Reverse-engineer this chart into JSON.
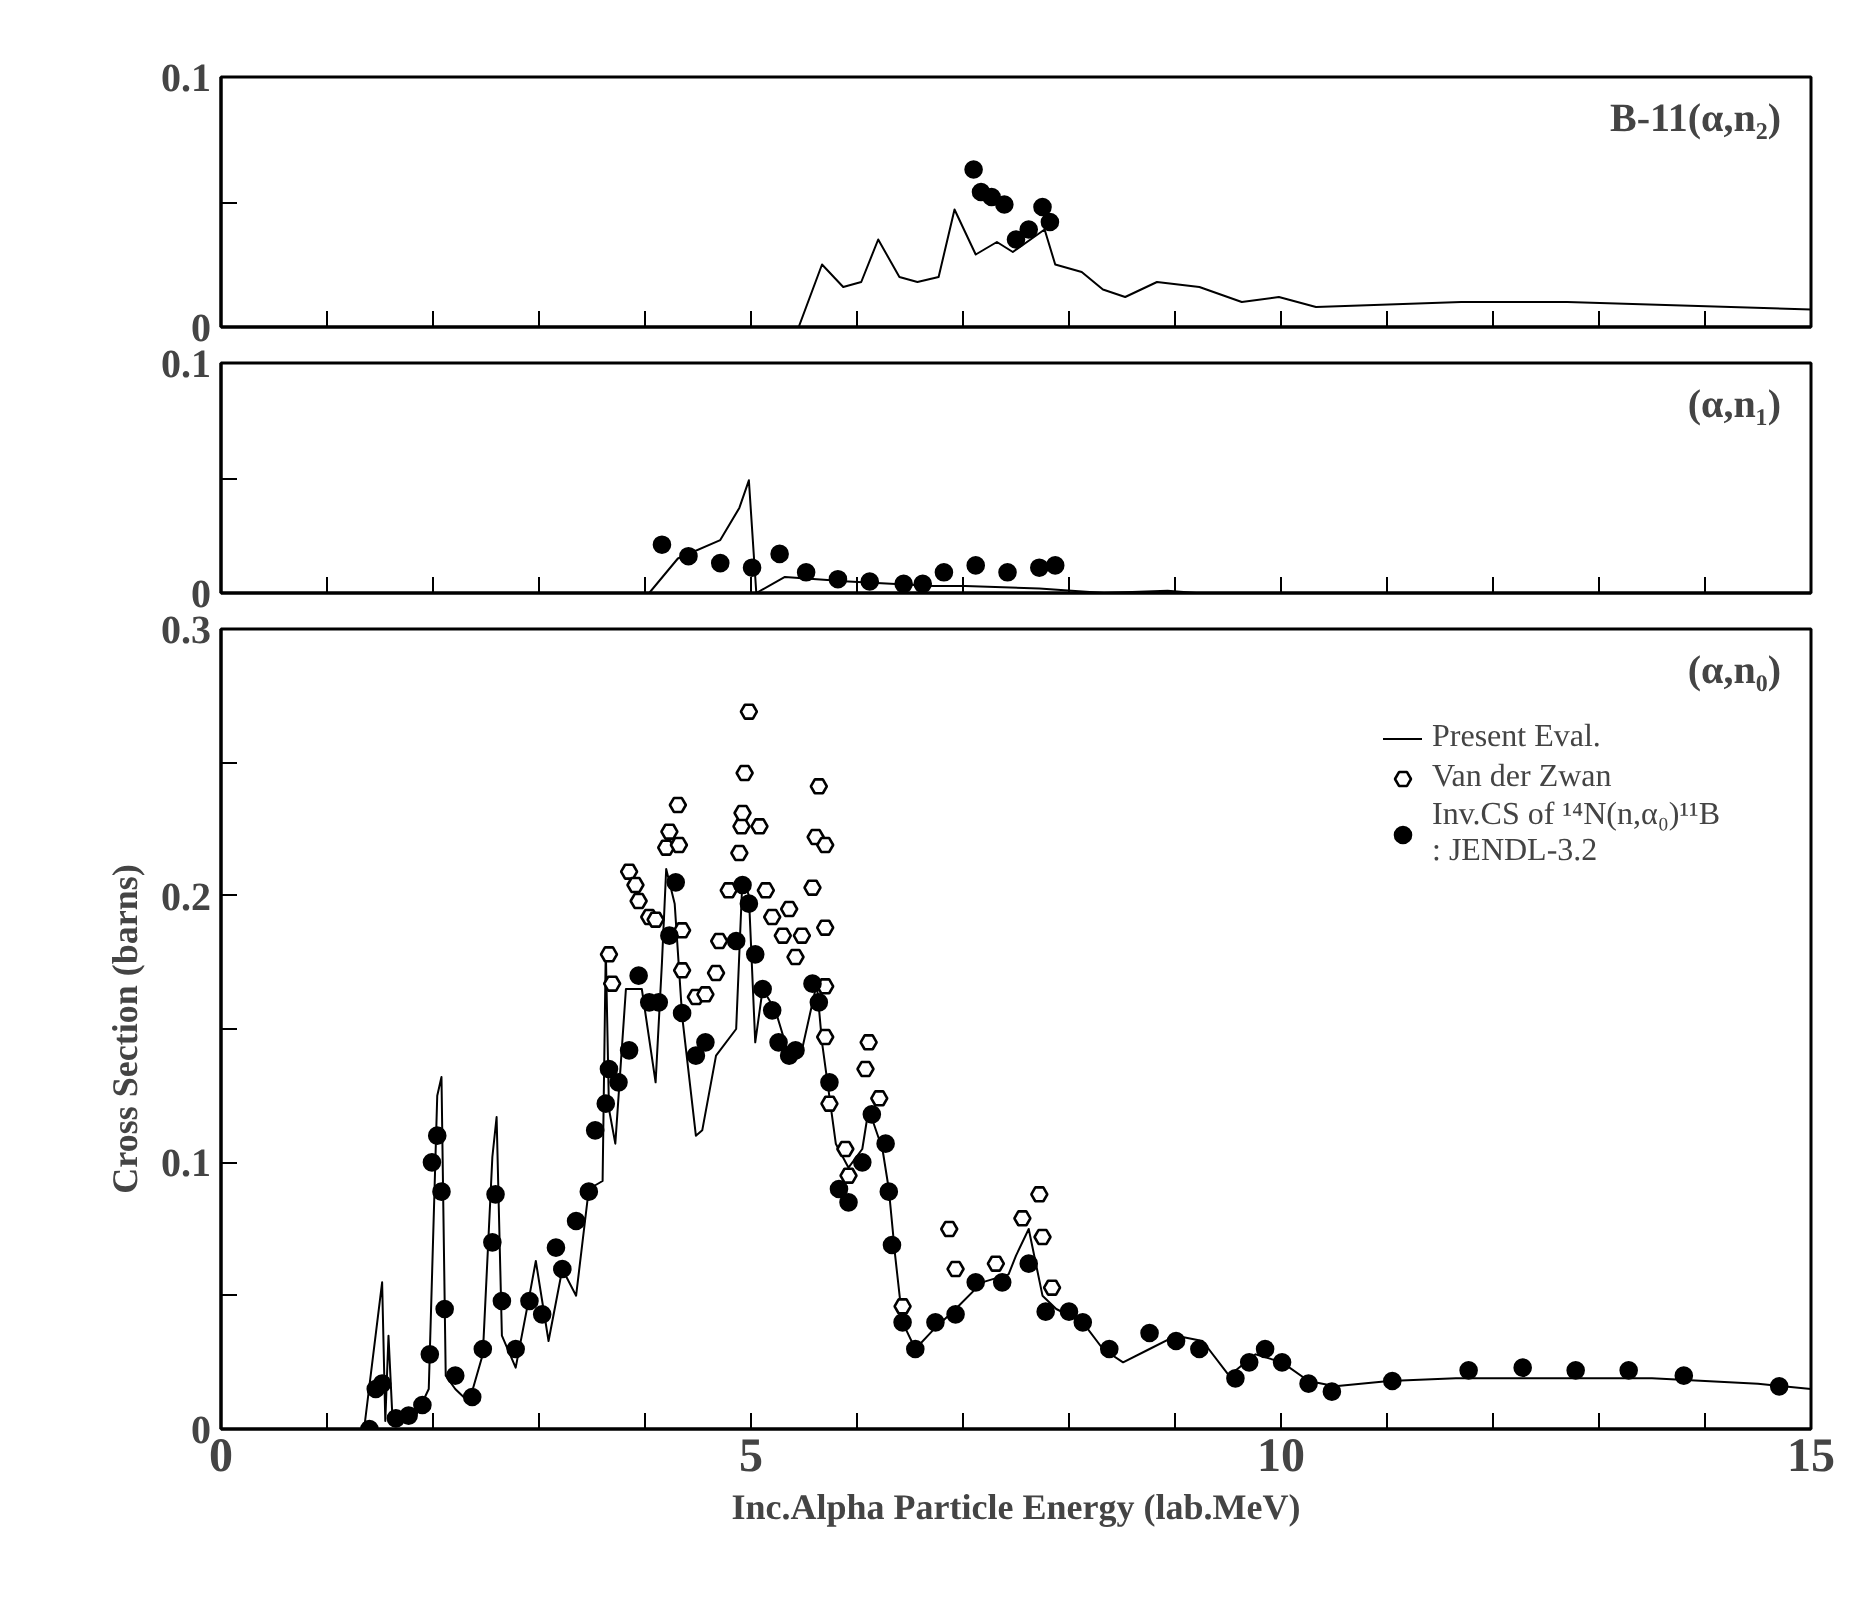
{
  "chart_data": [
    {
      "type": "line",
      "annotations": [
        "B-11(α,n₂)"
      ],
      "tick_labels": "y",
      "xlim": [
        0,
        15
      ],
      "ylim": [
        0,
        0.1
      ],
      "xticks": [
        0,
        {
          "value": 1,
          "label": null
        },
        {
          "value": 2,
          "label": null
        },
        {
          "value": 3,
          "label": null
        },
        {
          "value": 4,
          "label": null
        },
        5,
        {
          "value": 6,
          "label": null
        },
        {
          "value": 7,
          "label": null
        },
        {
          "value": 8,
          "label": null
        },
        {
          "value": 9,
          "label": null
        },
        10,
        {
          "value": 11,
          "label": null
        },
        {
          "value": 12,
          "label": null
        },
        {
          "value": 13,
          "label": null
        },
        {
          "value": 14,
          "label": null
        },
        15
      ],
      "yticks": [
        0,
        {
          "value": 0.05,
          "label": null
        },
        0.1
      ],
      "series": [
        {
          "color": "#000000",
          "x": [
            5.45,
            5.67,
            5.87,
            6.04,
            6.2,
            6.4,
            6.57,
            6.77,
            6.92,
            7.12,
            7.32,
            7.47,
            7.67,
            7.77,
            7.87,
            8.12,
            8.32,
            8.53,
            8.83,
            9.23,
            9.63,
            9.98,
            10.33,
            11.7,
            12.7,
            15
          ],
          "values": [
            0,
            0.025,
            0.016,
            0.018,
            0.035,
            0.02,
            0.018,
            0.02,
            0.047,
            0.029,
            0.034,
            0.03,
            0.036,
            0.039,
            0.025,
            0.022,
            0.015,
            0.012,
            0.018,
            0.016,
            0.01,
            0.012,
            0.008,
            0.01,
            0.01,
            0.007
          ]
        },
        {
          "type": "scatter",
          "marker": "circle",
          "color": "#000000",
          "x": [
            7.1,
            7.17,
            7.27,
            7.39,
            7.5,
            7.62,
            7.75,
            7.82
          ],
          "values": [
            0.063,
            0.054,
            0.052,
            0.049,
            0.035,
            0.039,
            0.048,
            0.042
          ]
        }
      ]
    },
    {
      "type": "line",
      "annotations": [
        "(α,n₁)"
      ],
      "tick_labels": "y",
      "xlim": [
        0,
        15
      ],
      "ylim": [
        0,
        0.1
      ],
      "xticks": [
        0,
        {
          "value": 1,
          "label": null
        },
        {
          "value": 2,
          "label": null
        },
        {
          "value": 3,
          "label": null
        },
        {
          "value": 4,
          "label": null
        },
        5,
        {
          "value": 6,
          "label": null
        },
        {
          "value": 7,
          "label": null
        },
        {
          "value": 8,
          "label": null
        },
        {
          "value": 9,
          "label": null
        },
        10,
        {
          "value": 11,
          "label": null
        },
        {
          "value": 12,
          "label": null
        },
        {
          "value": 13,
          "label": null
        },
        {
          "value": 14,
          "label": null
        },
        15
      ],
      "yticks": [
        0,
        {
          "value": 0.05,
          "label": null
        },
        0.1
      ],
      "series": [
        {
          "color": "#000000",
          "x": [
            4.04,
            4.31,
            4.71,
            4.89,
            4.98,
            5.05,
            5.32,
            5.92,
            6.72,
            7.02,
            7.72,
            8.33,
            8.93,
            9.2
          ],
          "values": [
            0,
            0.015,
            0.023,
            0.037,
            0.049,
            0,
            0.007,
            0.005,
            0.003,
            0.003,
            0.002,
            0,
            0.001,
            0
          ]
        },
        {
          "type": "scatter",
          "marker": "circle",
          "color": "#000000",
          "x": [
            4.16,
            4.41,
            4.71,
            5.01,
            5.27,
            5.52,
            5.82,
            6.12,
            6.44,
            6.62,
            6.82,
            7.12,
            7.42,
            7.72,
            7.87
          ],
          "values": [
            0.021,
            0.016,
            0.013,
            0.011,
            0.017,
            0.009,
            0.006,
            0.005,
            0.004,
            0.004,
            0.009,
            0.012,
            0.009,
            0.011,
            0.012
          ]
        }
      ]
    },
    {
      "type": "line",
      "annotations": [
        "(α,n₀)"
      ],
      "xlabel": "Inc.Alpha Particle Energy (lab.MeV)",
      "ylabel": "Cross Section (barns)",
      "legend": "top right",
      "xlim": [
        0,
        15
      ],
      "ylim": [
        0,
        0.3
      ],
      "xticks": [
        0,
        {
          "value": 1,
          "label": null
        },
        {
          "value": 2,
          "label": null
        },
        {
          "value": 3,
          "label": null
        },
        {
          "value": 4,
          "label": null
        },
        5,
        {
          "value": 6,
          "label": null
        },
        {
          "value": 7,
          "label": null
        },
        {
          "value": 8,
          "label": null
        },
        {
          "value": 9,
          "label": null
        },
        10,
        {
          "value": 11,
          "label": null
        },
        {
          "value": 12,
          "label": null
        },
        {
          "value": 13,
          "label": null
        },
        {
          "value": 14,
          "label": null
        },
        15
      ],
      "yticks": [
        0,
        {
          "value": 0.05,
          "label": null
        },
        0.1,
        {
          "value": 0.15,
          "label": null
        },
        0.2,
        {
          "value": 0.25,
          "label": null
        },
        0.3
      ],
      "series": [
        {
          "name": "Present Eval.",
          "color": "#000000",
          "x": [
            1.35,
            1.52,
            1.55,
            1.58,
            1.62,
            1.84,
            1.96,
            2.04,
            2.08,
            2.12,
            2.21,
            2.34,
            2.47,
            2.56,
            2.6,
            2.65,
            2.78,
            2.91,
            2.97,
            3.09,
            3.22,
            3.35,
            3.47,
            3.6,
            3.63,
            3.66,
            3.72,
            3.82,
            3.97,
            4.1,
            4.16,
            4.2,
            4.28,
            4.35,
            4.48,
            4.54,
            4.67,
            4.86,
            4.92,
            4.98,
            5.04,
            5.11,
            5.23,
            5.36,
            5.48,
            5.62,
            5.67,
            5.8,
            5.92,
            6.05,
            6.11,
            6.24,
            6.3,
            6.36,
            6.43,
            6.55,
            6.74,
            6.93,
            7.18,
            7.43,
            7.5,
            7.62,
            7.75,
            7.88,
            8.13,
            8.32,
            8.51,
            8.76,
            9.01,
            9.26,
            9.51,
            9.76,
            10.01,
            10.26,
            10.51,
            11.02,
            11.65,
            12.28,
            13.5,
            14.5,
            15
          ],
          "values": [
            0,
            0.055,
            0.003,
            0.035,
            0.002,
            0.005,
            0.015,
            0.125,
            0.132,
            0.02,
            0.015,
            0.01,
            0.028,
            0.102,
            0.117,
            0.035,
            0.023,
            0.05,
            0.063,
            0.033,
            0.06,
            0.05,
            0.09,
            0.093,
            0.18,
            0.12,
            0.107,
            0.165,
            0.165,
            0.13,
            0.175,
            0.21,
            0.197,
            0.155,
            0.11,
            0.112,
            0.14,
            0.15,
            0.207,
            0.2,
            0.145,
            0.165,
            0.157,
            0.14,
            0.142,
            0.167,
            0.145,
            0.107,
            0.098,
            0.105,
            0.12,
            0.105,
            0.09,
            0.065,
            0.04,
            0.03,
            0.038,
            0.045,
            0.055,
            0.058,
            0.065,
            0.075,
            0.05,
            0.045,
            0.04,
            0.03,
            0.025,
            0.03,
            0.035,
            0.033,
            0.02,
            0.028,
            0.025,
            0.018,
            0.016,
            0.018,
            0.019,
            0.019,
            0.019,
            0.017,
            0.015
          ]
        },
        {
          "type": "scatter",
          "name": "Van der Zwan",
          "marker": "diamond",
          "color": "#000000",
          "x": [
            3.66,
            3.69,
            3.85,
            3.91,
            3.94,
            4.04,
            4.1,
            4.2,
            4.23,
            4.31,
            4.32,
            4.35,
            4.35,
            4.48,
            4.57,
            4.67,
            4.7,
            4.79,
            4.89,
            4.91,
            4.92,
            4.94,
            4.98,
            5.08,
            5.14,
            5.2,
            5.3,
            5.36,
            5.42,
            5.48,
            5.58,
            5.61,
            5.64,
            5.7,
            5.7,
            5.7,
            5.7,
            5.74,
            5.89,
            5.92,
            6.08,
            6.11,
            6.21,
            6.43,
            6.87,
            6.93,
            7.31,
            7.56,
            7.72,
            7.75,
            7.84
          ],
          "values": [
            0.178,
            0.167,
            0.209,
            0.204,
            0.198,
            0.192,
            0.191,
            0.218,
            0.224,
            0.234,
            0.219,
            0.187,
            0.172,
            0.162,
            0.163,
            0.171,
            0.183,
            0.202,
            0.216,
            0.226,
            0.231,
            0.246,
            0.269,
            0.226,
            0.202,
            0.192,
            0.185,
            0.195,
            0.177,
            0.185,
            0.203,
            0.222,
            0.241,
            0.219,
            0.188,
            0.166,
            0.147,
            0.122,
            0.105,
            0.095,
            0.135,
            0.145,
            0.124,
            0.046,
            0.075,
            0.06,
            0.062,
            0.079,
            0.088,
            0.072,
            0.053
          ]
        },
        {
          "type": "scatter",
          "name": "Inv.CS of ¹⁴N(n,α₀)¹¹B\n: JENDL-3.2",
          "marker": "circle",
          "color": "#000000",
          "x": [
            1.4,
            1.46,
            1.52,
            1.65,
            1.77,
            1.9,
            1.97,
            1.99,
            2.04,
            2.08,
            2.11,
            2.21,
            2.37,
            2.47,
            2.56,
            2.59,
            2.65,
            2.78,
            2.91,
            3.03,
            3.16,
            3.22,
            3.35,
            3.47,
            3.53,
            3.63,
            3.66,
            3.75,
            3.85,
            3.94,
            4.04,
            4.13,
            4.23,
            4.29,
            4.35,
            4.48,
            4.57,
            4.86,
            4.92,
            4.98,
            5.04,
            5.11,
            5.2,
            5.26,
            5.36,
            5.42,
            5.58,
            5.64,
            5.74,
            5.83,
            5.92,
            6.05,
            6.14,
            6.27,
            6.3,
            6.33,
            6.43,
            6.55,
            6.74,
            6.93,
            7.12,
            7.37,
            7.62,
            7.78,
            8.0,
            8.13,
            8.38,
            8.76,
            9.01,
            9.23,
            9.57,
            9.7,
            9.85,
            10.01,
            10.26,
            10.48,
            11.05,
            11.77,
            12.28,
            12.78,
            13.28,
            13.8,
            14.7
          ],
          "values": [
            0.0,
            0.015,
            0.017,
            0.004,
            0.005,
            0.009,
            0.028,
            0.1,
            0.11,
            0.089,
            0.045,
            0.02,
            0.012,
            0.03,
            0.07,
            0.088,
            0.048,
            0.03,
            0.048,
            0.043,
            0.068,
            0.06,
            0.078,
            0.089,
            0.112,
            0.122,
            0.135,
            0.13,
            0.142,
            0.17,
            0.16,
            0.16,
            0.185,
            0.205,
            0.156,
            0.14,
            0.145,
            0.183,
            0.204,
            0.197,
            0.178,
            0.165,
            0.157,
            0.145,
            0.14,
            0.142,
            0.167,
            0.16,
            0.13,
            0.09,
            0.085,
            0.1,
            0.118,
            0.107,
            0.089,
            0.069,
            0.04,
            0.03,
            0.04,
            0.043,
            0.055,
            0.055,
            0.062,
            0.044,
            0.044,
            0.04,
            0.03,
            0.036,
            0.033,
            0.03,
            0.019,
            0.025,
            0.03,
            0.025,
            0.017,
            0.014,
            0.018,
            0.022,
            0.023,
            0.022,
            0.022,
            0.02,
            0.016
          ]
        }
      ]
    }
  ]
}
